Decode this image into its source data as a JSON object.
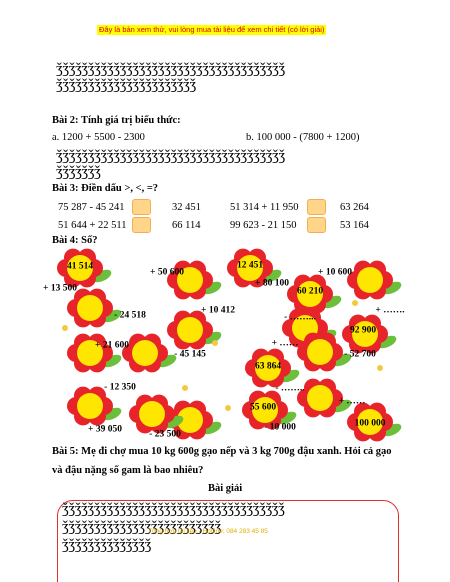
{
  "banner": "Đây là bản xem thử, vui lòng mua tài liệu để xem chi tiết (có lời giải)",
  "dots": {
    "line1": "ǯǯǯǯǯǯǯǯǯǯǯǯǯǯǯǯǯǯǯǯǯǯǯǯǯǯǯǯǯǯǯǯǯǯǯǯ",
    "line2": "ǯǯǯǯǯǯǯǯǯǯǯǯǯǯǯǯǯǯǯǯǯǯ",
    "line3": "ǯǯǯǯǯǯǯǯǯǯǯǯǯǯǯǯǯǯǯǯǯǯǯǯǯǯǯǯǯǯǯǯǯǯǯǯ",
    "line4": "ǯǯǯǯǯǯǯ",
    "line5": "ǯǯǯǯǯǯǯǯǯǯǯǯǯǯǯǯǯǯǯǯǯǯǯǯǯǯǯǯǯǯǯǯǯǯǯ",
    "line6": "ǯǯǯǯǯǯǯǯǯǯǯǯǯǯǯǯǯǯǯǯǯǯǯǯǯ",
    "line7": "ǯǯǯǯǯǯǯǯǯǯǯǯǯǯ"
  },
  "ex2": {
    "title": "Bài 2: Tính giá trị biểu thức:",
    "a": "a. 1200 + 5500 - 2300",
    "b": "b. 100 000 - (7800 + 1200)"
  },
  "ex3": {
    "title": "Bài 3: Điền dấu >, <, =?",
    "rows": [
      [
        "75 287 - 45 241",
        "32 451",
        "51 314 + 11 950",
        "63 264"
      ],
      [
        "51 644 + 22 511",
        "66 114",
        "99 623 - 21 150",
        "53 164"
      ]
    ]
  },
  "ex4": {
    "title": "Bài 4: Số?",
    "labels": [
      "41 514",
      "+ 50 600",
      "+ 13 500",
      "- 24 518",
      "+ 10 412",
      "+ 21 600",
      "- 45 145",
      "- 12 350",
      "+ 39 050",
      "- 23 500",
      "12 451",
      "+ 10 600",
      "+ 80 100",
      "60 210",
      "- ……...",
      "+ …….",
      "92 900",
      "+ ……",
      "- 52 700",
      "63 864",
      "- ……..",
      "+ ……",
      "55 600",
      "- 10 000",
      "100 000"
    ]
  },
  "ex5": {
    "line1": "Bài 5: Mẹ đi chợ mua 10 kg 600g gạo nếp và 3 kg 700g đậu xanh. Hỏi cả gạo",
    "line2": "và đậu nặng số gam là bao nhiêu?",
    "solution": "Bài giải"
  },
  "footer": "Tổng hợp tài liệu - Hotline: 084 283 45 85"
}
